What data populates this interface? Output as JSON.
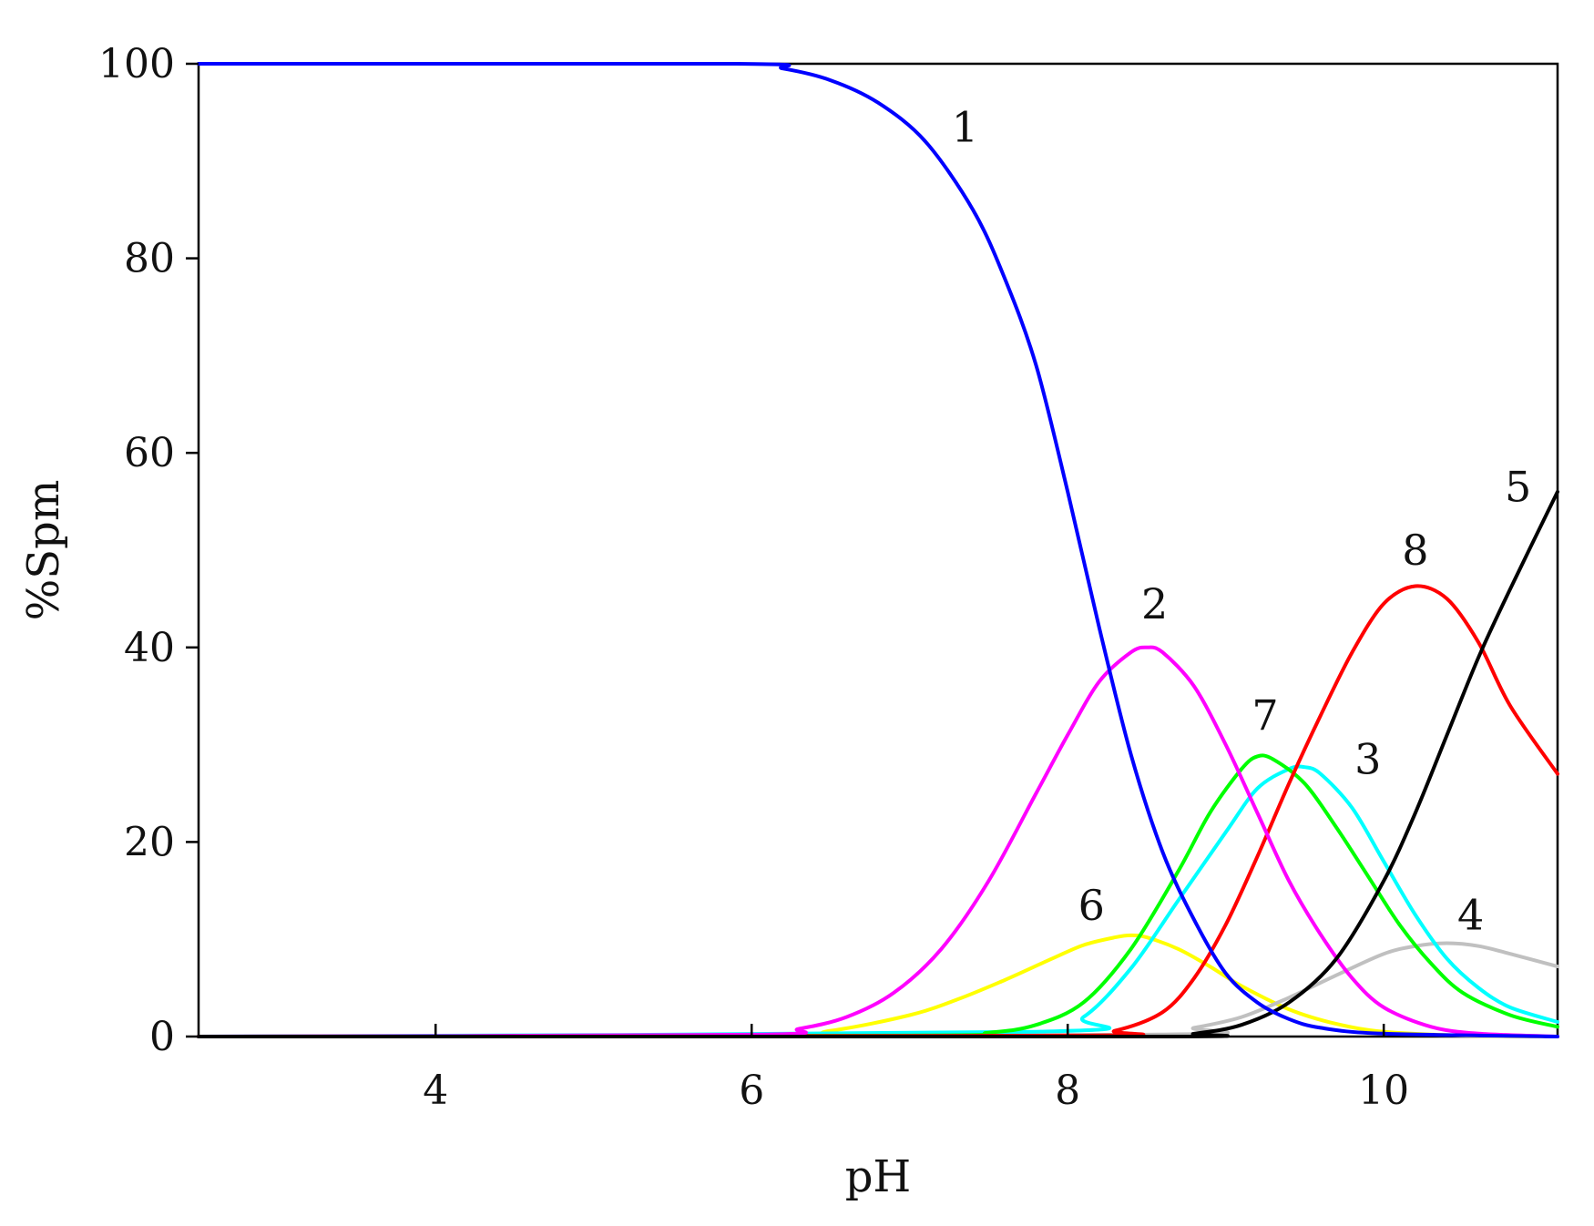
{
  "chart_data": {
    "type": "line",
    "title": "",
    "xlabel": "pH",
    "ylabel": "%Spm",
    "xlim": [
      2.5,
      11.1
    ],
    "ylim": [
      0,
      100
    ],
    "xticks": [
      4,
      6,
      8,
      10
    ],
    "yticks": [
      0,
      20,
      40,
      60,
      80,
      100
    ],
    "grid": false,
    "legend": "none",
    "series": [
      {
        "label": "1",
        "color": "#0000ff",
        "x": [
          2.5,
          5.9,
          6.2,
          6.5,
          6.8,
          7.1,
          7.4,
          7.6,
          7.8,
          8.0,
          8.2,
          8.4,
          8.6,
          8.8,
          9.0,
          9.2,
          9.4,
          9.6,
          10.0,
          11.1
        ],
        "y": [
          100,
          100,
          99.5,
          98.3,
          96,
          92,
          85,
          78,
          69,
          56,
          42,
          29,
          19,
          12,
          6.5,
          3.5,
          1.8,
          0.9,
          0.3,
          0
        ],
        "label_pos": [
          7.35,
          92
        ]
      },
      {
        "label": "2",
        "color": "#ff00ff",
        "x": [
          2.5,
          6.0,
          6.3,
          6.6,
          6.9,
          7.2,
          7.5,
          7.8,
          8.0,
          8.2,
          8.4,
          8.5,
          8.6,
          8.8,
          9.0,
          9.2,
          9.4,
          9.6,
          9.8,
          10.0,
          10.3,
          10.6,
          11.1
        ],
        "y": [
          0,
          0.2,
          0.8,
          2,
          4.5,
          9,
          16,
          25,
          31,
          36.5,
          39.5,
          40,
          39.5,
          36,
          30,
          23,
          16,
          10.5,
          6,
          3,
          1,
          0.3,
          0
        ],
        "label_pos": [
          8.55,
          43
        ]
      },
      {
        "label": "3",
        "color": "#00ffff",
        "x": [
          2.5,
          7.8,
          8.1,
          8.4,
          8.7,
          9.0,
          9.2,
          9.4,
          9.5,
          9.6,
          9.8,
          10.0,
          10.2,
          10.4,
          10.6,
          10.8,
          11.1
        ],
        "y": [
          0,
          0.5,
          2,
          7,
          14,
          21,
          25.5,
          27.5,
          27.7,
          27,
          23.5,
          18,
          12.5,
          8,
          5,
          3,
          1.5
        ],
        "label_pos": [
          9.9,
          27
        ]
      },
      {
        "label": "4",
        "color": "#c0c0c0",
        "x": [
          2.5,
          8.5,
          8.8,
          9.1,
          9.4,
          9.7,
          10.0,
          10.2,
          10.4,
          10.6,
          10.8,
          11.1
        ],
        "y": [
          0,
          0.2,
          0.9,
          2,
          4,
          6.3,
          8.5,
          9.3,
          9.6,
          9.3,
          8.5,
          7.2
        ],
        "label_pos": [
          10.55,
          11
        ]
      },
      {
        "label": "5",
        "color": "#000000",
        "x": [
          2.5,
          8.5,
          8.8,
          9.1,
          9.4,
          9.7,
          10.0,
          10.2,
          10.4,
          10.6,
          10.8,
          11.1
        ],
        "y": [
          0,
          0,
          0.3,
          1.2,
          3.5,
          8,
          16,
          23,
          31,
          39,
          46,
          56
        ],
        "label_pos": [
          10.85,
          55
        ]
      },
      {
        "label": "6",
        "color": "#ffff00",
        "x": [
          2.5,
          6.0,
          6.5,
          7.0,
          7.3,
          7.6,
          7.9,
          8.1,
          8.3,
          8.4,
          8.5,
          8.7,
          8.9,
          9.1,
          9.4,
          9.7,
          10.0,
          10.5,
          11.1
        ],
        "y": [
          0,
          0,
          0.6,
          2.2,
          3.8,
          5.8,
          8,
          9.4,
          10.2,
          10.4,
          10.2,
          9,
          7.2,
          5.2,
          2.8,
          1.3,
          0.5,
          0.1,
          0
        ],
        "label_pos": [
          8.15,
          12
        ]
      },
      {
        "label": "7",
        "color": "#00ff00",
        "x": [
          2.5,
          7.0,
          7.5,
          7.8,
          8.1,
          8.4,
          8.7,
          8.9,
          9.1,
          9.2,
          9.3,
          9.5,
          9.7,
          9.9,
          10.1,
          10.3,
          10.5,
          10.8,
          11.1
        ],
        "y": [
          0,
          0.1,
          0.4,
          1.2,
          3.5,
          9,
          17,
          23,
          27.5,
          28.8,
          28.5,
          26,
          21.5,
          16.5,
          11.5,
          7.5,
          4.5,
          2.2,
          1
        ],
        "label_pos": [
          9.25,
          31.5
        ]
      },
      {
        "label": "8",
        "color": "#ff0000",
        "x": [
          2.5,
          8.0,
          8.3,
          8.6,
          8.8,
          9.0,
          9.2,
          9.4,
          9.6,
          9.8,
          10.0,
          10.2,
          10.4,
          10.6,
          10.8,
          11.1
        ],
        "y": [
          0,
          0.1,
          0.6,
          2.5,
          6,
          11.5,
          18.5,
          26,
          33,
          39.5,
          44.5,
          46.3,
          45,
          40.5,
          34,
          27
        ],
        "label_pos": [
          10.2,
          48.5
        ]
      }
    ]
  }
}
